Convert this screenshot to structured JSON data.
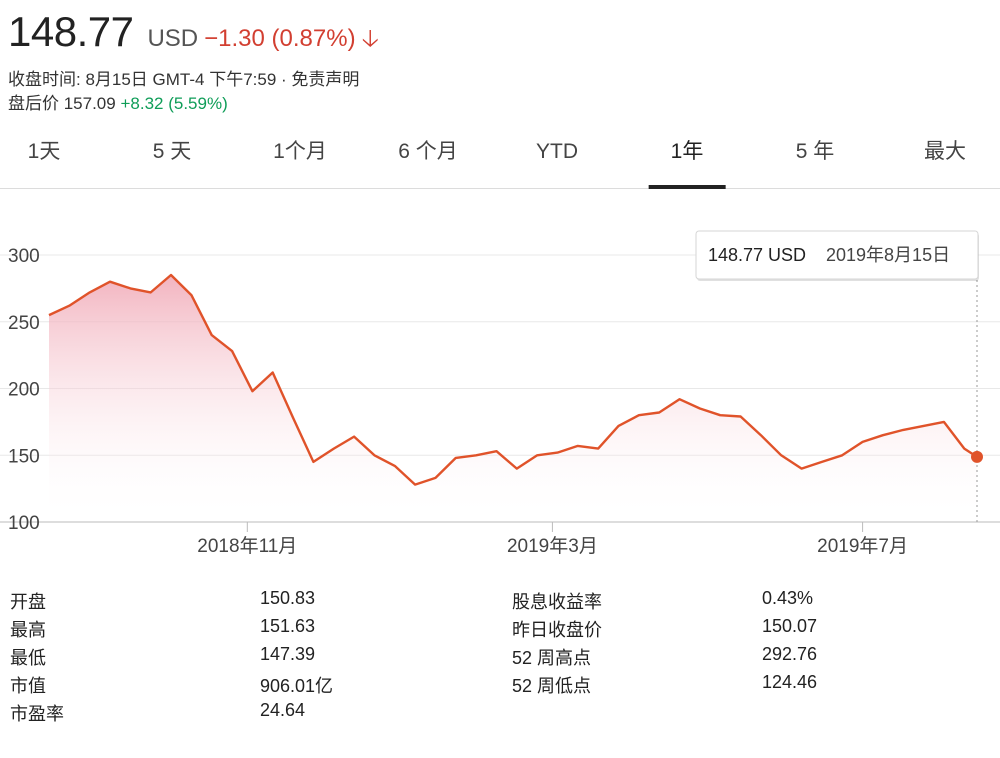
{
  "quote": {
    "price": "148.77",
    "currency": "USD",
    "change": "−1.30 (0.87%)",
    "close_time": "收盘时间: 8月15日 GMT-4 下午7:59 · 免责声明",
    "after_hours_label": "盘后价 157.09",
    "after_hours_change": "+8.32 (5.59%)",
    "down_color": "#d23f31",
    "up_color": "#0f9d58"
  },
  "tabs": [
    {
      "label": "1天",
      "active": false
    },
    {
      "label": "5 天",
      "active": false
    },
    {
      "label": "1个月",
      "active": false
    },
    {
      "label": "6 个月",
      "active": false
    },
    {
      "label": "YTD",
      "active": false
    },
    {
      "label": "1年",
      "active": true
    },
    {
      "label": "5 年",
      "active": false
    },
    {
      "label": "最大",
      "active": false
    }
  ],
  "tooltip": {
    "price": "148.77 USD",
    "date": "2019年8月15日"
  },
  "chart_data": {
    "type": "area",
    "line_color": "#e0532a",
    "y_ticks": [
      100,
      150,
      200,
      250,
      300
    ],
    "ylim": [
      100,
      300
    ],
    "x_tick_labels": [
      "2018年11月",
      "2019年3月",
      "2019年7月"
    ],
    "x_tick_dates": [
      "2018-11-01",
      "2019-03-01",
      "2019-07-01"
    ],
    "x_range": [
      "2018-08-15",
      "2019-08-15"
    ],
    "grid": true,
    "x": [
      "2018-08-15",
      "2018-08-23",
      "2018-08-31",
      "2018-09-08",
      "2018-09-16",
      "2018-09-24",
      "2018-10-02",
      "2018-10-10",
      "2018-10-18",
      "2018-10-26",
      "2018-11-03",
      "2018-11-11",
      "2018-11-19",
      "2018-11-27",
      "2018-12-05",
      "2018-12-13",
      "2018-12-21",
      "2018-12-29",
      "2019-01-06",
      "2019-01-14",
      "2019-01-22",
      "2019-01-30",
      "2019-02-07",
      "2019-02-15",
      "2019-02-23",
      "2019-03-03",
      "2019-03-11",
      "2019-03-19",
      "2019-03-27",
      "2019-04-04",
      "2019-04-12",
      "2019-04-20",
      "2019-04-28",
      "2019-05-06",
      "2019-05-14",
      "2019-05-22",
      "2019-05-30",
      "2019-06-07",
      "2019-06-15",
      "2019-06-23",
      "2019-07-01",
      "2019-07-09",
      "2019-07-17",
      "2019-07-25",
      "2019-08-02",
      "2019-08-10",
      "2019-08-15"
    ],
    "y": [
      255,
      262,
      272,
      280,
      275,
      272,
      285,
      270,
      240,
      228,
      198,
      212,
      178,
      145,
      155,
      164,
      150,
      142,
      128,
      133,
      148,
      150,
      153,
      140,
      150,
      152,
      157,
      155,
      172,
      180,
      182,
      192,
      185,
      180,
      179,
      165,
      150,
      140,
      145,
      150,
      160,
      165,
      169,
      172,
      175,
      155,
      148.77
    ]
  },
  "stats": {
    "left": [
      {
        "label": "开盘",
        "value": "150.83"
      },
      {
        "label": "最高",
        "value": "151.63"
      },
      {
        "label": "最低",
        "value": "147.39"
      },
      {
        "label": "市值",
        "value": "906.01亿"
      },
      {
        "label": "市盈率",
        "value": "24.64"
      }
    ],
    "right": [
      {
        "label": "股息收益率",
        "value": "0.43%"
      },
      {
        "label": "昨日收盘价",
        "value": "150.07"
      },
      {
        "label": "52 周高点",
        "value": "292.76"
      },
      {
        "label": "52 周低点",
        "value": "124.46"
      }
    ]
  }
}
